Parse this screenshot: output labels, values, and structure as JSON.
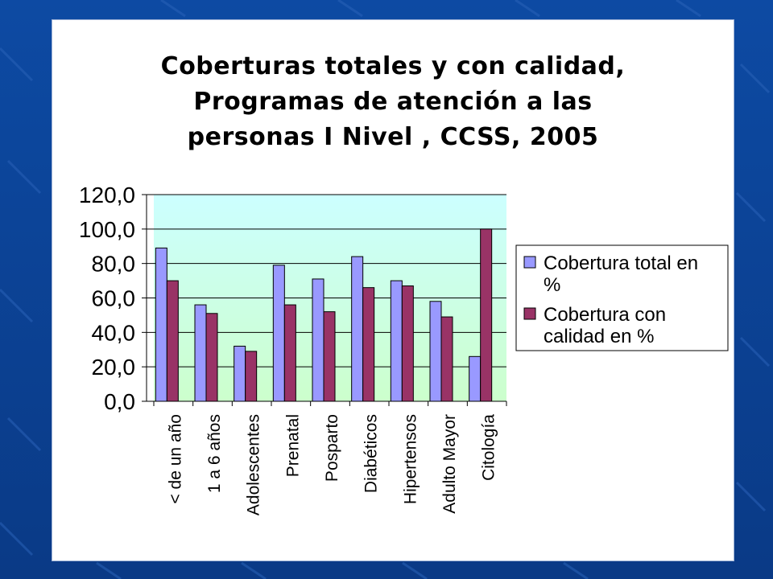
{
  "slide": {
    "background_color": "#0b3d8f",
    "panel_color": "#ffffff"
  },
  "chart_data": {
    "type": "bar",
    "title": [
      "Coberturas totales y con calidad,",
      "Programas de atención a las",
      "personas I Nivel , CCSS, 2005"
    ],
    "categories": [
      "< de un año",
      "1 a 6 años",
      "Adolescentes",
      "Prenatal",
      "Posparto",
      "Diabéticos",
      "Hipertensos",
      "Adulto Mayor",
      "Citología"
    ],
    "series": [
      {
        "name": "Cobertura total en %",
        "color": "#9999ff",
        "values": [
          89.0,
          56.0,
          32.0,
          79.0,
          71.0,
          84.0,
          70.0,
          58.0,
          26.0
        ]
      },
      {
        "name": "Cobertura con calidad en %",
        "color": "#993366",
        "values": [
          70.0,
          51.0,
          29.0,
          56.0,
          52.0,
          66.0,
          67.0,
          49.0,
          100.0
        ]
      }
    ],
    "ylim": [
      0,
      120
    ],
    "yticks": [
      "0,0",
      "20,0",
      "40,0",
      "60,0",
      "80,0",
      "100,0",
      "120,0"
    ],
    "ytick_values": [
      0,
      20,
      40,
      60,
      80,
      100,
      120
    ],
    "grid": true,
    "legend_position": "right",
    "plot_background_gradient": [
      "#ccffff",
      "#ccffcc"
    ]
  }
}
